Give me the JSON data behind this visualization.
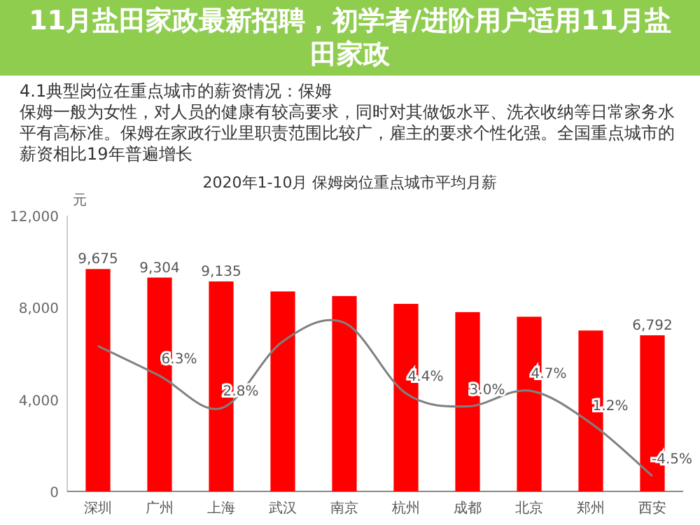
{
  "chart_data": {
    "type": "bar",
    "title": "2020年1-10月  保姆岗位重点城市平均月薪",
    "ylabel": "元",
    "annotations": [
      "11月盐田家政最新招聘，初学者/进阶用户适用11月盐田家政",
      "4.1典型岗位在重点城市的薪资情况：保姆",
      "保姆一般为女性，对人员的健康有较高要求，同时对其做饭水平、洗衣收纳等日常家务水平有高标准。保姆在家政行业里职责范围比较广，雇主的要求个性化强。全国重点城市的薪资相比19年普遍增长"
    ],
    "categories": [
      "深圳",
      "广州",
      "上海",
      "武汉",
      "南京",
      "杭州",
      "成都",
      "北京",
      "郑州",
      "西安"
    ],
    "series": [
      {
        "color": "#ff0000",
        "values": [
          9675,
          9304,
          9135,
          8700,
          8500,
          8160,
          7800,
          7600,
          7000,
          6792
        ],
        "value_labels": [
          "9,675",
          "9,304",
          "9,135",
          null,
          null,
          null,
          null,
          null,
          null,
          "6,792"
        ]
      },
      {
        "type": "line",
        "axis": "y2",
        "color": "#808080",
        "values": [
          9.5,
          6.3,
          2.8,
          10,
          12,
          4.4,
          3.0,
          4.7,
          1.2,
          -4.5
        ],
        "value_labels": [
          null,
          "6.3%",
          "2.8%",
          null,
          null,
          "4.4%",
          "3.0%",
          "4.7%",
          "1.2%",
          "-4.5%"
        ]
      }
    ],
    "ylim": [
      0,
      12000
    ],
    "yticks": [
      {
        "value": 0,
        "label": "0"
      },
      {
        "value": 4000,
        "label": "4,000"
      },
      {
        "value": 8000,
        "label": "8,000"
      },
      {
        "value": 12000,
        "label": "12,000"
      }
    ],
    "tick_labels": "y",
    "grid": false
  }
}
